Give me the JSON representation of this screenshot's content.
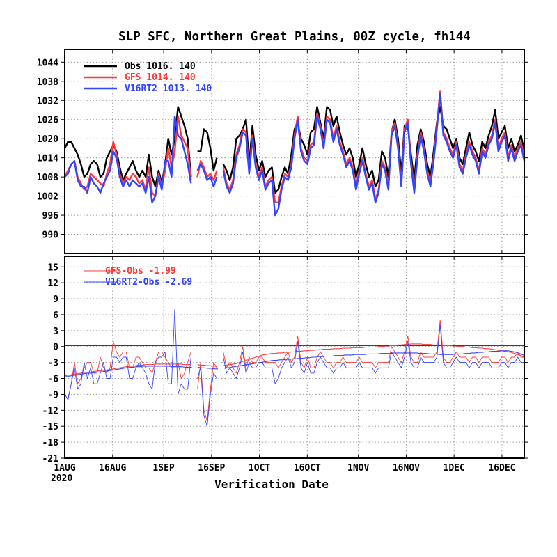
{
  "chart_data": [
    {
      "type": "line",
      "title": "SLP SFC, Northern Great Plains, 00Z cycle, fh144",
      "xlabel": "Verification Date",
      "x_ticks": [
        "1AUG",
        "16AUG",
        "1SEP",
        "16SEP",
        "1OCT",
        "16OCT",
        "1NOV",
        "16NOV",
        "1DEC",
        "16DEC"
      ],
      "x_year": "2020",
      "x_range": [
        "2020-08-01",
        "2020-12-23"
      ],
      "y_ticks": [
        990,
        996,
        1002,
        1008,
        1014,
        1020,
        1026,
        1032,
        1038,
        1044
      ],
      "ylim": [
        984,
        1048
      ],
      "grid": true,
      "legend_position": "top-left",
      "series": [
        {
          "name": "Obs",
          "legend_label": "Obs  1016.  140",
          "color": "#000000",
          "values": [
            1017,
            1019,
            1019,
            1017,
            1015,
            1012,
            1008,
            1009,
            1012,
            1013,
            1012,
            1008,
            1009,
            1014,
            1016,
            1018,
            1016,
            1011,
            1007,
            1009,
            1011,
            1013,
            1010,
            1008,
            1010,
            1008,
            1015,
            1008,
            1005,
            1010,
            1006,
            1012,
            1020,
            1015,
            1020,
            1030,
            1027,
            1024,
            1020,
            1008,
            null,
            1016,
            1016,
            1023,
            1022,
            1017,
            1010,
            1014,
            null,
            1012,
            1010,
            1007,
            1011,
            1020,
            1021,
            1023,
            1026,
            1012,
            1024,
            1015,
            1010,
            1013,
            1008,
            1010,
            1011,
            1003,
            1004,
            1008,
            1011,
            1009,
            1015,
            1023,
            1025,
            1020,
            1018,
            1015,
            1022,
            1023,
            1030,
            1025,
            1020,
            1030,
            1029,
            1024,
            1027,
            1022,
            1018,
            1015,
            1017,
            1014,
            1008,
            1012,
            1017,
            1012,
            1008,
            1010,
            1005,
            1007,
            1016,
            1014,
            1008,
            1022,
            1026,
            1020,
            1009,
            1024,
            1024,
            1015,
            1007,
            1018,
            1023,
            1019,
            1012,
            1008,
            1016,
            1025,
            1030,
            1024,
            1023,
            1020,
            1017,
            1020,
            1014,
            1012,
            1017,
            1022,
            1018,
            1016,
            1013,
            1019,
            1017,
            1021,
            1024,
            1029,
            1020,
            1022,
            1024,
            1017,
            1020,
            1016,
            1018,
            1021,
            1016
          ]
        },
        {
          "name": "GFS",
          "legend_label": "GFS  1014.  140",
          "color": "#ff3838",
          "values": [
            1008,
            1010,
            1012,
            1013,
            1008,
            1006,
            1004,
            1005,
            1009,
            1008,
            1007,
            1006,
            1005,
            1009,
            1012,
            1019,
            1015,
            1009,
            1006,
            1008,
            1007,
            1009,
            1008,
            1006,
            1007,
            1004,
            1011,
            1003,
            1002,
            1009,
            1005,
            1010,
            1017,
            1011,
            1016,
            1027,
            1021,
            1019,
            1017,
            1007,
            null,
            1008,
            1013,
            1011,
            1008,
            1009,
            1007,
            1010,
            null,
            1011,
            1006,
            1004,
            1007,
            1015,
            1018,
            1023,
            1022,
            1010,
            1021,
            1012,
            1008,
            1011,
            1005,
            1007,
            1008,
            1000,
            1000,
            1005,
            1009,
            1008,
            1012,
            1021,
            1027,
            1017,
            1014,
            1013,
            1018,
            1019,
            1028,
            1024,
            1018,
            1027,
            1026,
            1020,
            1024,
            1019,
            1016,
            1012,
            1014,
            1011,
            1005,
            1010,
            1014,
            1009,
            1005,
            1007,
            1001,
            1004,
            1013,
            1011,
            1005,
            1022,
            1025,
            1018,
            1006,
            1023,
            1026,
            1013,
            1004,
            1015,
            1022,
            1017,
            1010,
            1006,
            1014,
            1024,
            1035,
            1022,
            1020,
            1017,
            1015,
            1019,
            1012,
            1010,
            1015,
            1019,
            1016,
            1014,
            1010,
            1017,
            1015,
            1019,
            1021,
            1026,
            1017,
            1020,
            1022,
            1014,
            1018,
            1014,
            1017,
            1019,
            1014
          ]
        },
        {
          "name": "V16RT2",
          "legend_label": "V16RT2  1013.  140",
          "color": "#3344ff",
          "values": [
            1008,
            1009,
            1012,
            1013,
            1007,
            1005,
            1005,
            1003,
            1008,
            1006,
            1005,
            1003,
            1006,
            1008,
            1010,
            1016,
            1014,
            1008,
            1005,
            1007,
            1005,
            1007,
            1006,
            1005,
            1006,
            1003,
            1008,
            1000,
            1002,
            1008,
            1004,
            1013,
            1013,
            1008,
            1027,
            1021,
            1020,
            1016,
            1012,
            1006,
            null,
            1010,
            1012,
            1010,
            1007,
            1008,
            1005,
            1008,
            null,
            1010,
            1005,
            1003,
            1006,
            1014,
            1017,
            1022,
            1021,
            1009,
            1020,
            1011,
            1007,
            1010,
            1004,
            1006,
            1007,
            996,
            998,
            1004,
            1008,
            1007,
            1011,
            1020,
            1026,
            1016,
            1013,
            1012,
            1017,
            1018,
            1027,
            1023,
            1017,
            1026,
            1025,
            1019,
            1023,
            1018,
            1015,
            1011,
            1013,
            1010,
            1004,
            1009,
            1013,
            1008,
            1004,
            1006,
            1000,
            1003,
            1012,
            1010,
            1004,
            1021,
            1024,
            1017,
            1005,
            1022,
            1025,
            1012,
            1003,
            1014,
            1021,
            1016,
            1009,
            1005,
            1013,
            1023,
            1034,
            1021,
            1019,
            1016,
            1014,
            1018,
            1011,
            1009,
            1014,
            1018,
            1015,
            1013,
            1009,
            1016,
            1014,
            1018,
            1020,
            1025,
            1016,
            1019,
            1021,
            1013,
            1017,
            1013,
            1016,
            1018,
            1013
          ]
        }
      ]
    },
    {
      "type": "line",
      "x_range": [
        "2020-08-01",
        "2020-12-23"
      ],
      "y_ticks": [
        -21,
        -18,
        -15,
        -12,
        -9,
        -6,
        -3,
        0,
        3,
        6,
        9,
        12,
        15
      ],
      "ylim": [
        -21,
        17
      ],
      "grid": true,
      "legend_position": "top-left",
      "series": [
        {
          "name": "GFS-Obs",
          "legend_label": "GFS-Obs -1.99",
          "color": "#ff3838",
          "values": [
            -9,
            -10,
            -7,
            -3,
            -7,
            -6,
            -4,
            -3,
            -3,
            -5,
            -5,
            -2,
            -4,
            -5,
            -4,
            1,
            -1,
            -2,
            -1,
            -1,
            -4,
            -4,
            -2,
            -2,
            -3,
            -4,
            -4,
            -5,
            -3,
            -1,
            -1,
            -2,
            -3,
            -4,
            -4,
            -3,
            -6,
            -5,
            -3,
            -1,
            null,
            -8,
            -3,
            -12,
            -14,
            -8,
            -3,
            -4,
            null,
            -1,
            -4,
            -3,
            -4,
            -5,
            -3,
            0,
            -4,
            -2,
            -3,
            -3,
            -2,
            -2,
            -3,
            -3,
            -3,
            -3,
            -4,
            -3,
            -2,
            -1,
            -3,
            -2,
            2,
            -3,
            -4,
            -2,
            -4,
            -4,
            -2,
            -1,
            -2,
            -3,
            -3,
            -4,
            -3,
            -3,
            -2,
            -3,
            -3,
            -3,
            -3,
            -2,
            -3,
            -3,
            -3,
            -3,
            -4,
            -3,
            -3,
            -3,
            -3,
            0,
            -1,
            -2,
            -3,
            -1,
            2,
            -2,
            -3,
            -3,
            -1,
            -2,
            -2,
            -2,
            -2,
            -1,
            5,
            -2,
            -3,
            -3,
            -2,
            -1,
            -2,
            -2,
            -2,
            -3,
            -2,
            -2,
            -3,
            -2,
            -2,
            -2,
            -3,
            -3,
            -3,
            -2,
            -2,
            -3,
            -2,
            -2,
            -1,
            -2,
            -2
          ]
        },
        {
          "name": "GFS-Obs 30-day mean",
          "color": "#ff3838",
          "values": [
            -5.5,
            -5.4,
            -5.3,
            -5.2,
            -5.1,
            -5.0,
            -4.9,
            -4.8,
            -4.8,
            -4.7,
            -4.6,
            -4.5,
            -4.5,
            -4.4,
            -4.3,
            -4.2,
            -4.1,
            -4.0,
            -3.9,
            -3.8,
            -3.7,
            -3.7,
            -3.6,
            -3.5,
            -3.5,
            -3.4,
            -3.4,
            -3.4,
            -3.3,
            -3.3,
            -3.3,
            -3.3,
            -3.3,
            -3.3,
            -3.3,
            -3.3,
            -3.3,
            -3.4,
            -3.4,
            -3.4,
            null,
            -3.4,
            -3.5,
            -3.5,
            -3.6,
            -3.6,
            -3.7,
            -3.7,
            null,
            -3.6,
            -3.5,
            -3.4,
            -3.3,
            -3.2,
            -3.0,
            -2.8,
            -2.6,
            -2.4,
            -2.2,
            -2.0,
            -1.8,
            -1.6,
            -1.5,
            -1.4,
            -1.3,
            -1.3,
            -1.2,
            -1.2,
            -1.1,
            -1.1,
            -1.0,
            -1.0,
            -0.9,
            -0.9,
            -0.8,
            -0.8,
            -0.7,
            -0.7,
            -0.6,
            -0.6,
            -0.5,
            -0.5,
            -0.5,
            -0.4,
            -0.4,
            -0.4,
            -0.3,
            -0.3,
            -0.3,
            -0.2,
            -0.2,
            -0.2,
            -0.2,
            -0.1,
            -0.1,
            -0.1,
            -0.1,
            0.0,
            0.0,
            0.1,
            0.1,
            0.2,
            0.2,
            0.3,
            0.3,
            0.4,
            0.4,
            0.5,
            0.5,
            0.5,
            0.5,
            0.4,
            0.4,
            0.4,
            0.3,
            0.3,
            0.3,
            0.2,
            0.2,
            0.2,
            0.1,
            0.1,
            0.0,
            0.0,
            -0.1,
            -0.1,
            -0.2,
            -0.2,
            -0.3,
            -0.3,
            -0.4,
            -0.4,
            -0.5,
            -0.6,
            -0.7,
            -0.8,
            -0.9,
            -1.0,
            -1.1,
            -1.3,
            -1.5,
            -1.7,
            -2.0
          ]
        },
        {
          "name": "V16RT2-Obs",
          "legend_label": "V16RT2-Obs -2.69",
          "color": "#3344ff",
          "values": [
            -9,
            -10,
            -7,
            -4,
            -8,
            -7,
            -3,
            -6,
            -4,
            -7,
            -7,
            -5,
            -3,
            -6,
            -6,
            -2,
            -2,
            -3,
            -2,
            -2,
            -6,
            -6,
            -4,
            -3,
            -4,
            -5,
            -7,
            -8,
            -3,
            -2,
            -2,
            -1,
            -7,
            -7,
            7,
            -9,
            -7,
            -8,
            -8,
            -2,
            null,
            -6,
            -4,
            -13,
            -15,
            -9,
            -5,
            -6,
            null,
            -2,
            -5,
            -4,
            -5,
            -6,
            -4,
            -1,
            -5,
            -3,
            -4,
            -4,
            -3,
            -3,
            -4,
            -4,
            -4,
            -7,
            -6,
            -4,
            -3,
            -2,
            -4,
            -3,
            1,
            -4,
            -5,
            -3,
            -5,
            -5,
            -3,
            -2,
            -3,
            -4,
            -4,
            -5,
            -4,
            -4,
            -3,
            -4,
            -4,
            -4,
            -4,
            -3,
            -4,
            -4,
            -4,
            -4,
            -5,
            -4,
            -4,
            -4,
            -4,
            -1,
            -2,
            -3,
            -4,
            -2,
            1,
            -3,
            -4,
            -4,
            -2,
            -3,
            -3,
            -3,
            -3,
            -2,
            4,
            -3,
            -4,
            -4,
            -3,
            -2,
            -3,
            -3,
            -3,
            -4,
            -3,
            -3,
            -4,
            -3,
            -3,
            -3,
            -4,
            -4,
            -4,
            -3,
            -3,
            -4,
            -3,
            -3,
            -2,
            -3,
            -3
          ]
        },
        {
          "name": "V16RT2-Obs 30-day mean",
          "color": "#3344ff",
          "values": [
            -5.7,
            -5.6,
            -5.5,
            -5.4,
            -5.3,
            -5.2,
            -5.1,
            -5.0,
            -5.0,
            -4.9,
            -4.8,
            -4.8,
            -4.7,
            -4.6,
            -4.5,
            -4.4,
            -4.3,
            -4.2,
            -4.1,
            -4.0,
            -3.9,
            -3.9,
            -3.8,
            -3.8,
            -3.7,
            -3.7,
            -3.7,
            -3.7,
            -3.7,
            -3.7,
            -3.7,
            -3.7,
            -3.7,
            -3.8,
            -3.8,
            -3.8,
            -3.8,
            -3.9,
            -3.9,
            -3.9,
            null,
            -3.9,
            -4.0,
            -4.0,
            -4.1,
            -4.1,
            -4.2,
            -4.2,
            null,
            -4.1,
            -4.0,
            -3.9,
            -3.8,
            -3.7,
            -3.6,
            -3.5,
            -3.4,
            -3.3,
            -3.2,
            -3.1,
            -3.0,
            -2.9,
            -2.8,
            -2.7,
            -2.6,
            -2.6,
            -2.5,
            -2.5,
            -2.4,
            -2.4,
            -2.3,
            -2.3,
            -2.2,
            -2.2,
            -2.1,
            -2.1,
            -2.0,
            -2.0,
            -1.9,
            -1.9,
            -1.8,
            -1.8,
            -1.8,
            -1.7,
            -1.7,
            -1.7,
            -1.6,
            -1.6,
            -1.6,
            -1.5,
            -1.5,
            -1.5,
            -1.5,
            -1.4,
            -1.4,
            -1.4,
            -1.4,
            -1.3,
            -1.3,
            -1.3,
            -1.3,
            -1.2,
            -1.2,
            -1.2,
            -1.2,
            -1.2,
            -1.2,
            -1.2,
            -1.2,
            -1.3,
            -1.3,
            -1.3,
            -1.4,
            -1.4,
            -1.4,
            -1.5,
            -1.5,
            -1.5,
            -1.5,
            -1.5,
            -1.4,
            -1.4,
            -1.4,
            -1.3,
            -1.3,
            -1.2,
            -1.2,
            -1.1,
            -1.1,
            -1.0,
            -1.0,
            -0.9,
            -0.9,
            -0.9,
            -0.8,
            -0.8,
            -0.8,
            -0.9,
            -1.0,
            -1.2,
            -1.4,
            -1.7
          ]
        }
      ]
    }
  ]
}
